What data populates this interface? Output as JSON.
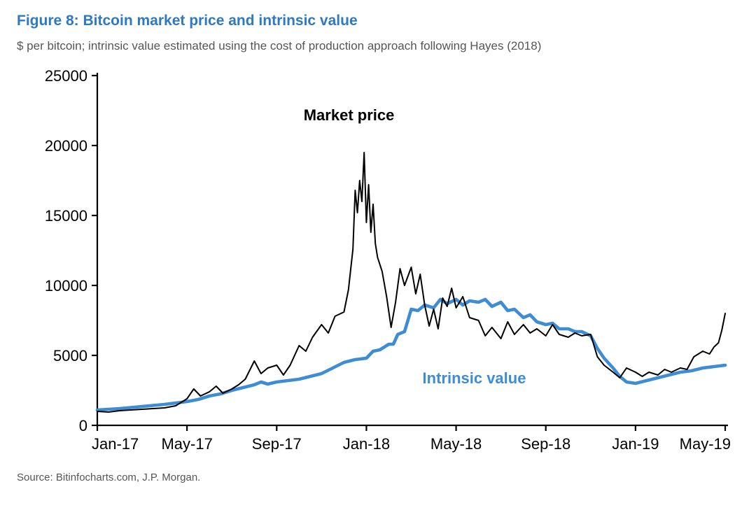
{
  "figure": {
    "title": "Figure 8: Bitcoin market price and intrinsic value",
    "subtitle": "$ per bitcoin; intrinsic value estimated using the cost of production approach following Hayes (2018)",
    "source": "Source: Bitinfocharts.com, J.P. Morgan."
  },
  "chart": {
    "type": "line",
    "background_color": "#ffffff",
    "axis_color": "#000000",
    "axis_stroke_width": 2.2,
    "tick_length": 8,
    "tick_font_size": 22,
    "y": {
      "min": 0,
      "max": 25000,
      "step": 5000,
      "ticks": [
        0,
        5000,
        10000,
        15000,
        20000,
        25000
      ]
    },
    "x": {
      "labels": [
        "Jan-17",
        "May-17",
        "Sep-17",
        "Jan-18",
        "May-18",
        "Sep-18",
        "Jan-19",
        "May-19"
      ],
      "index_min": 0,
      "index_max": 28
    },
    "series_labels": {
      "market_price": "Market price",
      "intrinsic_value": "Intrinsic value"
    },
    "label_positions": {
      "market_price": {
        "x_index": 9.2,
        "y_value": 21800
      },
      "intrinsic_value": {
        "x_index": 14.5,
        "y_value": 3000
      }
    },
    "colors": {
      "market_price": "#000000",
      "intrinsic_value": "#3e8cd3"
    },
    "stroke_widths": {
      "market_price": 2.0,
      "intrinsic_value": 4.6
    },
    "market_price_data": [
      [
        0.0,
        1000
      ],
      [
        0.5,
        950
      ],
      [
        1.0,
        1050
      ],
      [
        1.5,
        1100
      ],
      [
        2.0,
        1150
      ],
      [
        2.5,
        1200
      ],
      [
        3.0,
        1250
      ],
      [
        3.5,
        1400
      ],
      [
        4.0,
        1900
      ],
      [
        4.3,
        2600
      ],
      [
        4.6,
        2100
      ],
      [
        5.0,
        2400
      ],
      [
        5.3,
        2800
      ],
      [
        5.6,
        2300
      ],
      [
        6.0,
        2600
      ],
      [
        6.3,
        2900
      ],
      [
        6.6,
        3300
      ],
      [
        7.0,
        4600
      ],
      [
        7.3,
        3700
      ],
      [
        7.6,
        4100
      ],
      [
        8.0,
        4300
      ],
      [
        8.3,
        3600
      ],
      [
        8.6,
        4300
      ],
      [
        9.0,
        5700
      ],
      [
        9.3,
        5300
      ],
      [
        9.6,
        6300
      ],
      [
        10.0,
        7200
      ],
      [
        10.3,
        6600
      ],
      [
        10.6,
        7800
      ],
      [
        11.0,
        8100
      ],
      [
        11.2,
        9700
      ],
      [
        11.4,
        12600
      ],
      [
        11.5,
        16800
      ],
      [
        11.6,
        15200
      ],
      [
        11.7,
        17500
      ],
      [
        11.8,
        16000
      ],
      [
        11.9,
        19500
      ],
      [
        12.0,
        14500
      ],
      [
        12.1,
        17200
      ],
      [
        12.2,
        13800
      ],
      [
        12.3,
        15800
      ],
      [
        12.4,
        13000
      ],
      [
        12.5,
        12000
      ],
      [
        12.7,
        11000
      ],
      [
        12.9,
        9200
      ],
      [
        13.1,
        7000
      ],
      [
        13.3,
        8800
      ],
      [
        13.5,
        11200
      ],
      [
        13.7,
        10000
      ],
      [
        14.0,
        11300
      ],
      [
        14.2,
        9400
      ],
      [
        14.4,
        10800
      ],
      [
        14.6,
        8600
      ],
      [
        14.8,
        7100
      ],
      [
        15.0,
        8300
      ],
      [
        15.2,
        6900
      ],
      [
        15.4,
        9100
      ],
      [
        15.6,
        8500
      ],
      [
        15.8,
        9800
      ],
      [
        16.0,
        8400
      ],
      [
        16.3,
        9200
      ],
      [
        16.6,
        7700
      ],
      [
        17.0,
        7500
      ],
      [
        17.3,
        6400
      ],
      [
        17.6,
        7000
      ],
      [
        18.0,
        6200
      ],
      [
        18.3,
        7400
      ],
      [
        18.6,
        6500
      ],
      [
        19.0,
        7200
      ],
      [
        19.3,
        6600
      ],
      [
        19.6,
        6900
      ],
      [
        20.0,
        6400
      ],
      [
        20.3,
        7200
      ],
      [
        20.6,
        6500
      ],
      [
        21.0,
        6300
      ],
      [
        21.3,
        6600
      ],
      [
        21.6,
        6400
      ],
      [
        22.0,
        6500
      ],
      [
        22.3,
        4900
      ],
      [
        22.6,
        4300
      ],
      [
        23.0,
        3800
      ],
      [
        23.3,
        3400
      ],
      [
        23.6,
        4100
      ],
      [
        24.0,
        3800
      ],
      [
        24.3,
        3500
      ],
      [
        24.6,
        3800
      ],
      [
        25.0,
        3600
      ],
      [
        25.3,
        4000
      ],
      [
        25.6,
        3800
      ],
      [
        26.0,
        4100
      ],
      [
        26.3,
        4000
      ],
      [
        26.6,
        4900
      ],
      [
        27.0,
        5300
      ],
      [
        27.3,
        5100
      ],
      [
        27.5,
        5600
      ],
      [
        27.7,
        5900
      ],
      [
        27.85,
        6800
      ],
      [
        28.0,
        8000
      ]
    ],
    "intrinsic_value_data": [
      [
        0.0,
        1100
      ],
      [
        1.0,
        1200
      ],
      [
        2.0,
        1350
      ],
      [
        3.0,
        1500
      ],
      [
        4.0,
        1700
      ],
      [
        4.5,
        1850
      ],
      [
        5.0,
        2100
      ],
      [
        5.5,
        2250
      ],
      [
        6.0,
        2500
      ],
      [
        6.5,
        2700
      ],
      [
        7.0,
        2900
      ],
      [
        7.3,
        3100
      ],
      [
        7.6,
        2950
      ],
      [
        8.0,
        3100
      ],
      [
        8.5,
        3200
      ],
      [
        9.0,
        3300
      ],
      [
        9.5,
        3500
      ],
      [
        10.0,
        3700
      ],
      [
        10.5,
        4100
      ],
      [
        11.0,
        4500
      ],
      [
        11.5,
        4700
      ],
      [
        12.0,
        4800
      ],
      [
        12.3,
        5300
      ],
      [
        12.6,
        5400
      ],
      [
        13.0,
        5800
      ],
      [
        13.2,
        5800
      ],
      [
        13.4,
        6500
      ],
      [
        13.7,
        6700
      ],
      [
        14.0,
        8300
      ],
      [
        14.3,
        8200
      ],
      [
        14.6,
        8600
      ],
      [
        15.0,
        8400
      ],
      [
        15.3,
        9000
      ],
      [
        15.6,
        8700
      ],
      [
        16.0,
        9000
      ],
      [
        16.3,
        8600
      ],
      [
        16.6,
        8900
      ],
      [
        17.0,
        8800
      ],
      [
        17.3,
        9000
      ],
      [
        17.6,
        8500
      ],
      [
        18.0,
        8800
      ],
      [
        18.3,
        8200
      ],
      [
        18.6,
        8300
      ],
      [
        19.0,
        7700
      ],
      [
        19.3,
        7900
      ],
      [
        19.6,
        7400
      ],
      [
        20.0,
        7200
      ],
      [
        20.3,
        7300
      ],
      [
        20.6,
        6900
      ],
      [
        21.0,
        6900
      ],
      [
        21.3,
        6700
      ],
      [
        21.6,
        6700
      ],
      [
        22.0,
        6400
      ],
      [
        22.3,
        5500
      ],
      [
        22.6,
        4800
      ],
      [
        23.0,
        4100
      ],
      [
        23.3,
        3500
      ],
      [
        23.6,
        3100
      ],
      [
        24.0,
        3000
      ],
      [
        24.5,
        3200
      ],
      [
        25.0,
        3400
      ],
      [
        25.5,
        3600
      ],
      [
        26.0,
        3800
      ],
      [
        26.5,
        3900
      ],
      [
        27.0,
        4100
      ],
      [
        27.5,
        4200
      ],
      [
        28.0,
        4300
      ]
    ]
  }
}
